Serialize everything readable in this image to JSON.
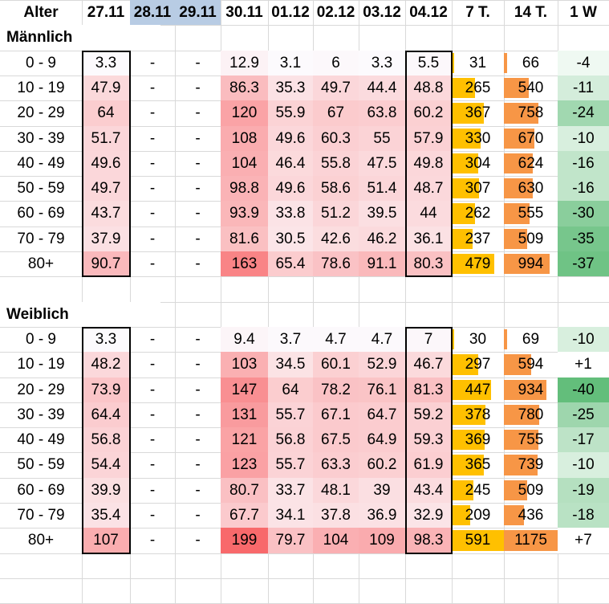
{
  "headers": [
    "Alter",
    "27.11",
    "28.11",
    "29.11",
    "30.11",
    "01.12",
    "02.12",
    "03.12",
    "04.12",
    "7 T.",
    "14 T.",
    "1 W"
  ],
  "highlighted_header_indices": [
    2,
    3
  ],
  "dash": "-",
  "sections": [
    {
      "title": "Männlich",
      "rows": [
        {
          "age": "0 - 9",
          "daily": [
            "3.3",
            "-",
            "-",
            "12.9",
            "3.1",
            "6",
            "3.3",
            "5.5"
          ],
          "t7": "31",
          "t14": "66",
          "w1": "-4"
        },
        {
          "age": "10 - 19",
          "daily": [
            "47.9",
            "-",
            "-",
            "86.3",
            "35.3",
            "49.7",
            "44.4",
            "48.8"
          ],
          "t7": "265",
          "t14": "540",
          "w1": "-11"
        },
        {
          "age": "20 - 29",
          "daily": [
            "64",
            "-",
            "-",
            "120",
            "55.9",
            "67",
            "63.8",
            "60.2"
          ],
          "t7": "367",
          "t14": "758",
          "w1": "-24"
        },
        {
          "age": "30 - 39",
          "daily": [
            "51.7",
            "-",
            "-",
            "108",
            "49.6",
            "60.3",
            "55",
            "57.9"
          ],
          "t7": "330",
          "t14": "670",
          "w1": "-10"
        },
        {
          "age": "40 - 49",
          "daily": [
            "49.6",
            "-",
            "-",
            "104",
            "46.4",
            "55.8",
            "47.5",
            "49.8"
          ],
          "t7": "304",
          "t14": "624",
          "w1": "-16"
        },
        {
          "age": "50 - 59",
          "daily": [
            "49.7",
            "-",
            "-",
            "98.8",
            "49.6",
            "58.6",
            "51.4",
            "48.7"
          ],
          "t7": "307",
          "t14": "630",
          "w1": "-16"
        },
        {
          "age": "60 - 69",
          "daily": [
            "43.7",
            "-",
            "-",
            "93.9",
            "33.8",
            "51.2",
            "39.5",
            "44"
          ],
          "t7": "262",
          "t14": "555",
          "w1": "-30"
        },
        {
          "age": "70 - 79",
          "daily": [
            "37.9",
            "-",
            "-",
            "81.6",
            "30.5",
            "42.6",
            "46.2",
            "36.1"
          ],
          "t7": "237",
          "t14": "509",
          "w1": "-35"
        },
        {
          "age": "80+",
          "daily": [
            "90.7",
            "-",
            "-",
            "163",
            "65.4",
            "78.6",
            "91.1",
            "80.3"
          ],
          "t7": "479",
          "t14": "994",
          "w1": "-37"
        }
      ]
    },
    {
      "title": "Weiblich",
      "rows": [
        {
          "age": "0 - 9",
          "daily": [
            "3.3",
            "-",
            "-",
            "9.4",
            "3.7",
            "4.7",
            "4.7",
            "7"
          ],
          "t7": "30",
          "t14": "69",
          "w1": "-10"
        },
        {
          "age": "10 - 19",
          "daily": [
            "48.2",
            "-",
            "-",
            "103",
            "34.5",
            "60.1",
            "52.9",
            "46.7"
          ],
          "t7": "297",
          "t14": "594",
          "w1": "+1"
        },
        {
          "age": "20 - 29",
          "daily": [
            "73.9",
            "-",
            "-",
            "147",
            "64",
            "78.2",
            "76.1",
            "81.3"
          ],
          "t7": "447",
          "t14": "934",
          "w1": "-40"
        },
        {
          "age": "30 - 39",
          "daily": [
            "64.4",
            "-",
            "-",
            "131",
            "55.7",
            "67.1",
            "64.7",
            "59.2"
          ],
          "t7": "378",
          "t14": "780",
          "w1": "-25"
        },
        {
          "age": "40 - 49",
          "daily": [
            "56.8",
            "-",
            "-",
            "121",
            "56.8",
            "67.5",
            "64.9",
            "59.3"
          ],
          "t7": "369",
          "t14": "755",
          "w1": "-17"
        },
        {
          "age": "50 - 59",
          "daily": [
            "54.4",
            "-",
            "-",
            "123",
            "55.7",
            "63.3",
            "60.2",
            "61.9"
          ],
          "t7": "365",
          "t14": "739",
          "w1": "-10"
        },
        {
          "age": "60 - 69",
          "daily": [
            "39.9",
            "-",
            "-",
            "80.7",
            "33.7",
            "48.1",
            "39",
            "43.4"
          ],
          "t7": "245",
          "t14": "509",
          "w1": "-19"
        },
        {
          "age": "70 - 79",
          "daily": [
            "35.4",
            "-",
            "-",
            "67.7",
            "34.1",
            "37.8",
            "36.9",
            "32.9"
          ],
          "t7": "209",
          "t14": "436",
          "w1": "-18"
        },
        {
          "age": "80+",
          "daily": [
            "107",
            "-",
            "-",
            "199",
            "79.7",
            "104",
            "109",
            "98.3"
          ],
          "t7": "591",
          "t14": "1175",
          "w1": "+7"
        }
      ]
    }
  ],
  "colors": {
    "heat_high": "#f8696b",
    "heat_low": "#fcfcff",
    "bar_7t": "#ffc000",
    "bar_14t": "#f79646",
    "w1_green": "#63be7b",
    "header_highlight": "#b8cce4",
    "grid": "#d9d9d9",
    "frame": "#000000"
  },
  "scales": {
    "heat_max": 199,
    "bar7_max": 591,
    "bar14_max": 1175,
    "w1_min": -40
  }
}
